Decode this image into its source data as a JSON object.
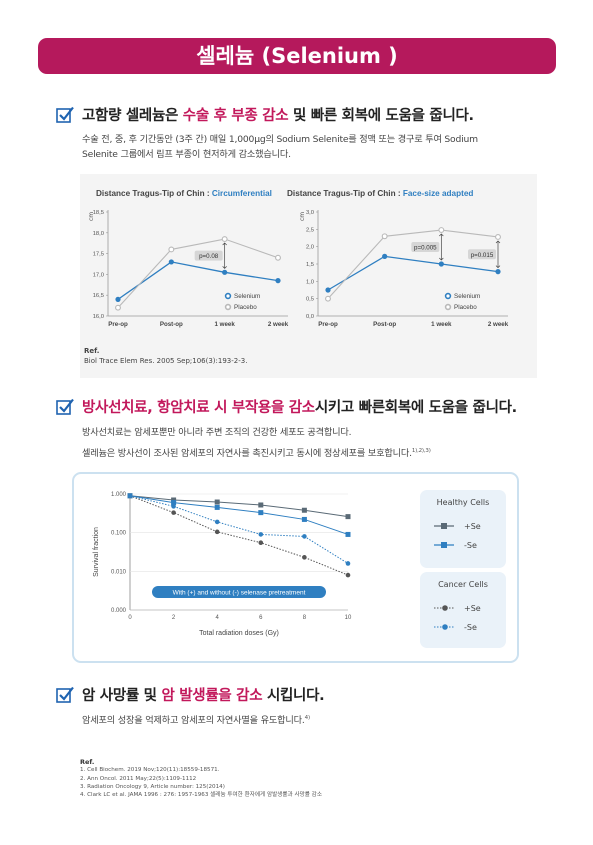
{
  "banner": {
    "title": "셀레늄 (Selenium )"
  },
  "section1": {
    "heading": {
      "pre": "고함량 셀레늄은 ",
      "hl": "수술 후 부종 감소",
      "post": " 및 빠른 회복에 도움을 줍니다."
    },
    "body_line1": "수술 전, 중, 후 기간동안 (3주 간) 매일 1,000μg의 Sodium Selenite를 정맥 또는 경구로 투여 Sodium",
    "body_line2": "Selenite 그룹에서 림프 부종이 현저하게 감소했습니다."
  },
  "figure1": {
    "left_title_prefix": "Distance Tragus-Tip of Chin : ",
    "left_title_suffix": "Circumferential",
    "right_title_prefix": "Distance Tragus-Tip of Chin : ",
    "right_title_suffix": "Face-size adapted",
    "y_unit": "cm",
    "ref_label": "Ref.",
    "ref_text": "Biol Trace Elem Res. 2005 Sep;106(3):193-2-3."
  },
  "section2": {
    "heading": {
      "hl": "방사선치료, 항암치료 시 부작용을 감소",
      "post": "시키고 빠른회복에 도움을 줍니다."
    },
    "body_line1": "방사선치료는 암세포뿐만 아니라 주변 조직의 건강한 세포도 공격합니다.",
    "body_line2": "셀레늄은 방사선이 조사된 암세포의 자연사를 촉진시키고 동시에 정상세포를 보호합니다.",
    "body_line2_sup": "1),2),3)"
  },
  "figure2": {
    "banner_text": "With (+) and without (-) selenase pretreatment",
    "healthy_title": "Healthy Cells",
    "cancer_title": "Cancer Cells",
    "plus_label": "+Se",
    "minus_label": "-Se"
  },
  "section3": {
    "heading": {
      "pre": "암 사망률 및 ",
      "hl": "암 발생률을 감소",
      "post": " 시킵니다."
    },
    "body_line1": "암세포의 성장을 억제하고 암세포의 자연사멸을 유도합니다.",
    "body_line1_sup": "4)"
  },
  "references": {
    "title": "Ref.",
    "items": [
      "1. Cell Biochem. 2019 Nov;120(11):18559-18571.",
      "2. Ann Oncol. 2011 May;22(5):1109-1112",
      "3.  Radiation Oncology 9, Article number: 125(2014)",
      "4. Clark LC et al. JAMA 1996 : 276: 1957-1963 셀레늄 투여한 환자에게 암발생률과 사망률 감소"
    ]
  },
  "colors": {
    "brand": "#b5195c",
    "highlight": "#c2185b",
    "selenium": "#2f7fc1",
    "placebo": "#b9b9b9",
    "healthy_dark": "#5a6a76"
  },
  "chart_data": [
    {
      "type": "line",
      "title": "Distance Tragus-Tip of Chin : Circumferential",
      "ylabel": "cm",
      "categories": [
        "Pre-op",
        "Post-op",
        "1 week",
        "2 week"
      ],
      "yticks": [
        "16,0",
        "16,5",
        "17,0",
        "17,5",
        "18,0",
        "18,5"
      ],
      "ylim": [
        16.0,
        18.5
      ],
      "series": [
        {
          "name": "Selenium",
          "values": [
            16.4,
            17.3,
            17.05,
            16.85
          ]
        },
        {
          "name": "Placebo",
          "values": [
            16.2,
            17.6,
            17.85,
            17.4
          ]
        }
      ],
      "annotations": [
        "p=0.08"
      ],
      "legend": "bottom-right"
    },
    {
      "type": "line",
      "title": "Distance Tragus-Tip of Chin : Face-size adapted",
      "ylabel": "cm",
      "categories": [
        "Pre-op",
        "Post-op",
        "1 week",
        "2 week"
      ],
      "yticks": [
        "0,0",
        "0,5",
        "1,0",
        "1,5",
        "2,0",
        "2,5",
        "3,0"
      ],
      "ylim": [
        0,
        3.0
      ],
      "series": [
        {
          "name": "Selenium",
          "values": [
            0.75,
            1.72,
            1.5,
            1.28
          ]
        },
        {
          "name": "Placebo",
          "values": [
            0.5,
            2.3,
            2.48,
            2.28
          ]
        }
      ],
      "annotations": [
        "p=0.005",
        "p=0.015"
      ],
      "legend": "bottom-right"
    },
    {
      "type": "line",
      "xlabel": "Total radiation doses (Gy)",
      "ylabel": "Survival fraction",
      "x": [
        0,
        2,
        4,
        6,
        8,
        10
      ],
      "xticks": [
        "0",
        "2",
        "4",
        "6",
        "8",
        "10"
      ],
      "yticks": [
        "0.000",
        "0.010",
        "0.100",
        "1.000"
      ],
      "y_scale": "log",
      "series": [
        {
          "name": "Healthy Cells +Se",
          "values": [
            0.9,
            0.7,
            0.62,
            0.52,
            0.38,
            0.26
          ]
        },
        {
          "name": "Healthy Cells -Se",
          "values": [
            0.9,
            0.6,
            0.45,
            0.33,
            0.22,
            0.09
          ]
        },
        {
          "name": "Cancer Cells +Se",
          "values": [
            0.9,
            0.33,
            0.105,
            0.055,
            0.023,
            0.008
          ]
        },
        {
          "name": "Cancer Cells -Se",
          "values": [
            0.9,
            0.48,
            0.19,
            0.09,
            0.08,
            0.016
          ]
        }
      ],
      "legend": "right"
    }
  ]
}
